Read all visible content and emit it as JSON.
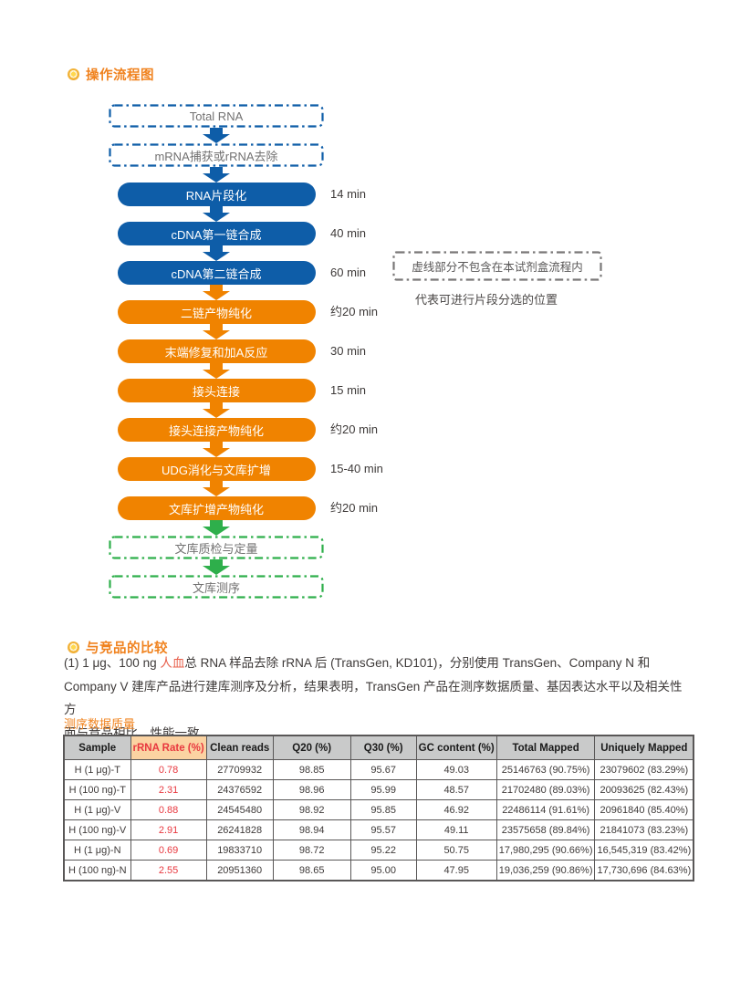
{
  "section1": {
    "title": "操作流程图"
  },
  "flowchart": {
    "steps": [
      {
        "label": "Total RNA",
        "type": "dashed-blue",
        "time": "",
        "arrow": "blue"
      },
      {
        "label": "mRNA捕获或rRNA去除",
        "type": "dashed-blue",
        "time": "",
        "arrow": "blue"
      },
      {
        "label": "RNA片段化",
        "type": "solid-blue",
        "time": "14 min",
        "arrow": "blue"
      },
      {
        "label": "cDNA第一链合成",
        "type": "solid-blue",
        "time": "40 min",
        "arrow": "blue"
      },
      {
        "label": "cDNA第二链合成",
        "type": "solid-blue",
        "time": "60 min",
        "arrow": "orange"
      },
      {
        "label": "二链产物纯化",
        "type": "solid-orange",
        "time": "约20 min",
        "arrow": "orange"
      },
      {
        "label": "末端修复和加A反应",
        "type": "solid-orange",
        "time": "30 min",
        "arrow": "orange"
      },
      {
        "label": "接头连接",
        "type": "solid-orange",
        "time": "15 min",
        "arrow": "orange"
      },
      {
        "label": "接头连接产物纯化",
        "type": "solid-orange",
        "time": "约20 min",
        "arrow": "orange"
      },
      {
        "label": "UDG消化与文库扩增",
        "type": "solid-orange",
        "time": "15-40 min",
        "arrow": "orange"
      },
      {
        "label": "文库扩增产物纯化",
        "type": "solid-orange",
        "time": "约20 min",
        "arrow": "green"
      },
      {
        "label": "文库质检与定量",
        "type": "dashed-green",
        "time": "",
        "arrow": "green"
      },
      {
        "label": "文库测序",
        "type": "dashed-green",
        "time": "",
        "arrow": null
      }
    ],
    "legend_box": "虚线部分不包含在本试剂盒流程内",
    "legend_caption": "代表可进行片段分选的位置"
  },
  "section2": {
    "title": "与竞品的比较",
    "para": {
      "pre": "(1) 1 μg、100 ng ",
      "red": "人血",
      "line1_rest": "总 RNA 样品去除 rRNA 后 (TransGen, KD101)，分别使用 TransGen、Company N 和",
      "line2": "Company V 建库产品进行建库测序及分析，结果表明，TransGen 产品在测序数据质量、基因表达水平以及相关性方",
      "line3": "面与竞品相比，性能一致。"
    },
    "table_label": "测序数据质量"
  },
  "table": {
    "columns": [
      "Sample",
      "rRNA Rate (%)",
      "Clean reads",
      "Q20 (%)",
      "Q30 (%)",
      "GC content (%)",
      "Total Mapped",
      "Uniquely Mapped"
    ],
    "rows": [
      [
        "H (1 μg)-T",
        "0.78",
        "27709932",
        "98.85",
        "95.67",
        "49.03",
        "25146763 (90.75%)",
        "23079602 (83.29%)"
      ],
      [
        "H (100 ng)-T",
        "2.31",
        "24376592",
        "98.96",
        "95.99",
        "48.57",
        "21702480 (89.03%)",
        "20093625 (82.43%)"
      ],
      [
        "H (1 μg)-V",
        "0.88",
        "24545480",
        "98.92",
        "95.85",
        "46.92",
        "22486114 (91.61%)",
        "20961840 (85.40%)"
      ],
      [
        "H (100 ng)-V",
        "2.91",
        "26241828",
        "98.94",
        "95.57",
        "49.11",
        "23575658 (89.84%)",
        "21841073 (83.23%)"
      ],
      [
        "H (1 μg)-N",
        "0.69",
        "19833710",
        "98.72",
        "95.22",
        "50.75",
        "17,980,295 (90.66%)",
        "16,545,319 (83.42%)"
      ],
      [
        "H (100 ng)-N",
        "2.55",
        "20951360",
        "98.65",
        "95.00",
        "47.95",
        "19,036,259 (90.86%)",
        "17,730,696 (84.63%)"
      ]
    ]
  },
  "colors": {
    "blue": "#0e5da8",
    "orange": "#f08300",
    "green": "#2eaf4b",
    "legend_gray": "#7a7878",
    "accent": "#f0821e",
    "red": "#e8383f"
  }
}
